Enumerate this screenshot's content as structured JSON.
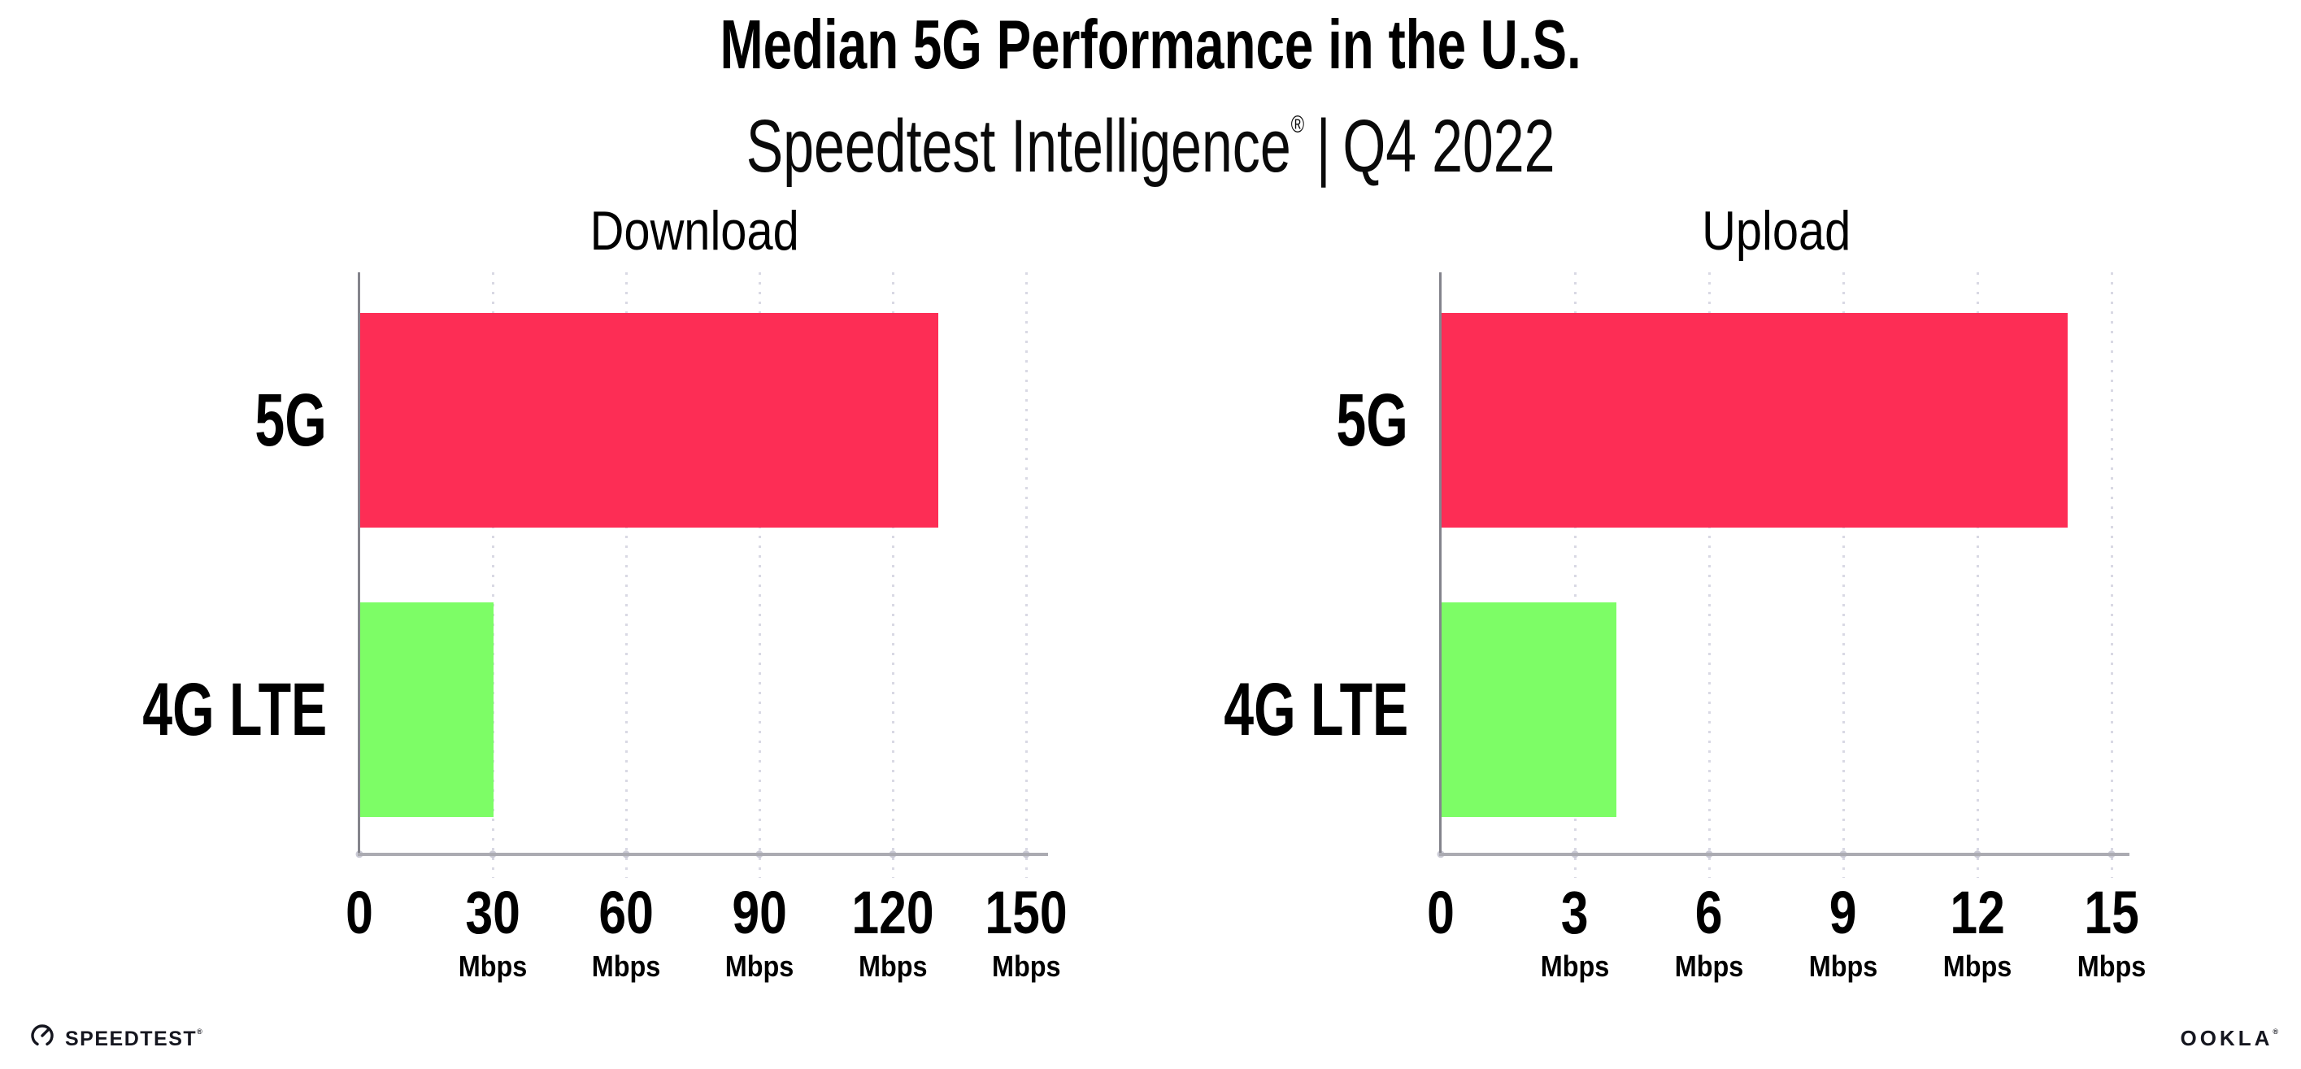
{
  "header": {
    "title": "Median 5G Performance in the U.S.",
    "subtitle": {
      "brand": "Speedtest Intelligence",
      "registered": "®",
      "separator": "|",
      "period": "Q4 2022"
    }
  },
  "chart_data": [
    {
      "type": "bar",
      "orientation": "horizontal",
      "title": "Download",
      "categories": [
        "5G",
        "4G LTE"
      ],
      "values": [
        130,
        30
      ],
      "unit": "Mbps",
      "tick_unit_label": "Mbps",
      "xlim": [
        0,
        150
      ],
      "xticks": [
        0,
        30,
        60,
        90,
        120,
        150
      ],
      "bar_colors": [
        "#FD2D55",
        "#7DFD66"
      ],
      "grid": "dotted-vertical-gridlines",
      "legend": "none"
    },
    {
      "type": "bar",
      "orientation": "horizontal",
      "title": "Upload",
      "categories": [
        "5G",
        "4G LTE"
      ],
      "values": [
        14,
        3.9
      ],
      "unit": "Mbps",
      "tick_unit_label": "Mbps",
      "xlim": [
        0,
        15
      ],
      "xticks": [
        0,
        3,
        6,
        9,
        12,
        15
      ],
      "bar_colors": [
        "#FD2D55",
        "#7DFD66"
      ],
      "grid": "dotted-vertical-gridlines",
      "legend": "none"
    }
  ],
  "footer": {
    "speedtest_logo_text": "SPEEDTEST",
    "speedtest_trademark": "®",
    "ookla_logo_text": "OOKLA",
    "ookla_trademark": "®"
  },
  "colors": {
    "bar_5g": "#FD2D55",
    "bar_4g_lte": "#7DFD66",
    "gridline": "#D9D9E4",
    "x_axis_line": "#ABABB2",
    "y_axis_line": "#84848C",
    "text": "#000000",
    "background": "#FFFFFF"
  }
}
